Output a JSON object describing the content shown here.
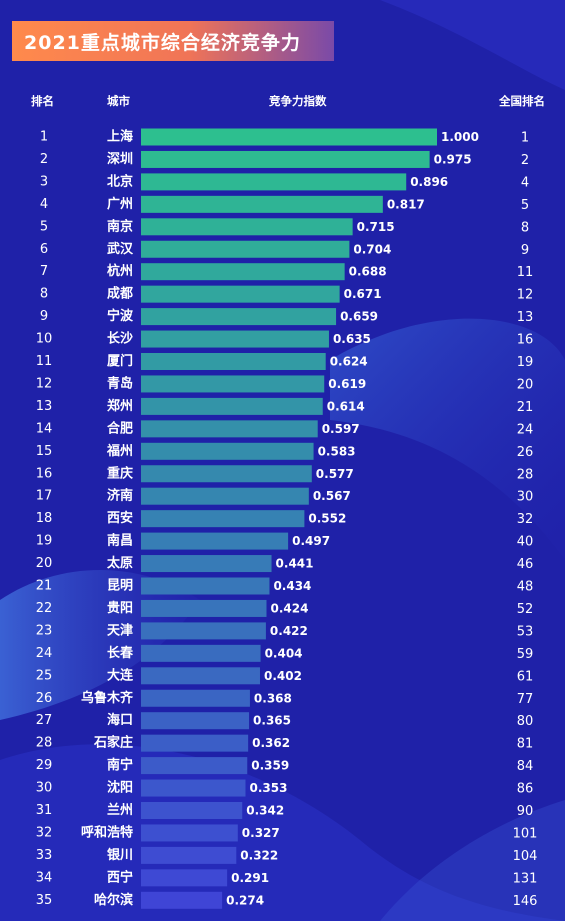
{
  "title": "2021重点城市综合经济竞争力",
  "headers": {
    "rank": "排名",
    "city": "城市",
    "index": "竞争力指数",
    "national_rank": "全国排名"
  },
  "colors": {
    "background": "#1f21a8",
    "bar_top": "#2dbf8f",
    "bar_bottom": "#3f45d6",
    "title_start": "#ff8a4c",
    "title_end": "#7a4aa8"
  },
  "chart_data": {
    "type": "bar",
    "orientation": "horizontal",
    "title": "2021重点城市综合经济竞争力",
    "categories": [
      "上海",
      "深圳",
      "北京",
      "广州",
      "南京",
      "武汉",
      "杭州",
      "成都",
      "宁波",
      "长沙",
      "厦门",
      "青岛",
      "郑州",
      "合肥",
      "福州",
      "重庆",
      "济南",
      "西安",
      "南昌",
      "太原",
      "昆明",
      "贵阳",
      "天津",
      "长春",
      "大连",
      "乌鲁木齐",
      "海口",
      "石家庄",
      "南宁",
      "沈阳",
      "兰州",
      "呼和浩特",
      "银川",
      "西宁",
      "哈尔滨"
    ],
    "values": [
      1.0,
      0.975,
      0.896,
      0.817,
      0.715,
      0.704,
      0.688,
      0.671,
      0.659,
      0.635,
      0.624,
      0.619,
      0.614,
      0.597,
      0.583,
      0.577,
      0.567,
      0.552,
      0.497,
      0.441,
      0.434,
      0.424,
      0.422,
      0.404,
      0.402,
      0.368,
      0.365,
      0.362,
      0.359,
      0.353,
      0.342,
      0.327,
      0.322,
      0.291,
      0.274
    ],
    "value_labels": [
      "1.000",
      "0.975",
      "0.896",
      "0.817",
      "0.715",
      "0.704",
      "0.688",
      "0.671",
      "0.659",
      "0.635",
      "0.624",
      "0.619",
      "0.614",
      "0.597",
      "0.583",
      "0.577",
      "0.567",
      "0.552",
      "0.497",
      "0.441",
      "0.434",
      "0.424",
      "0.422",
      "0.404",
      "0.402",
      "0.368",
      "0.365",
      "0.362",
      "0.359",
      "0.353",
      "0.342",
      "0.327",
      "0.322",
      "0.291",
      "0.274"
    ],
    "ranks": [
      "1",
      "2",
      "3",
      "4",
      "5",
      "6",
      "7",
      "8",
      "9",
      "10",
      "11",
      "12",
      "13",
      "14",
      "15",
      "16",
      "17",
      "18",
      "19",
      "20",
      "21",
      "22",
      "23",
      "24",
      "25",
      "26",
      "27",
      "28",
      "29",
      "30",
      "31",
      "32",
      "33",
      "34",
      "35"
    ],
    "national_ranks": [
      "1",
      "2",
      "4",
      "5",
      "8",
      "9",
      "11",
      "12",
      "13",
      "16",
      "19",
      "20",
      "21",
      "24",
      "26",
      "28",
      "30",
      "32",
      "40",
      "46",
      "48",
      "52",
      "53",
      "59",
      "61",
      "77",
      "80",
      "81",
      "84",
      "86",
      "90",
      "101",
      "104",
      "131",
      "146"
    ],
    "xlim": [
      0,
      1
    ],
    "grid": false,
    "legend": "none"
  }
}
